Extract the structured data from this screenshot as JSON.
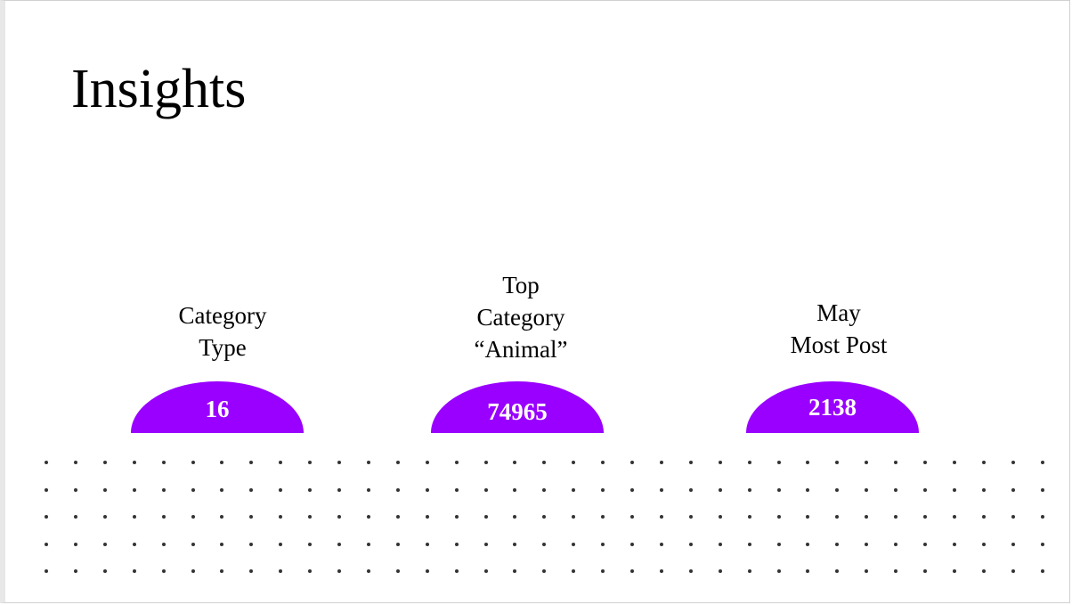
{
  "slide": {
    "title": "Insights",
    "accent_color": "#9900ff",
    "cards": [
      {
        "label": "Category\nType",
        "value": "16"
      },
      {
        "label": "Top\nCategory\n“Animal”",
        "value": "74965"
      },
      {
        "label": "May\nMost Post",
        "value": "2138"
      }
    ]
  }
}
